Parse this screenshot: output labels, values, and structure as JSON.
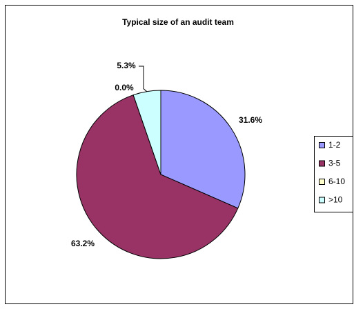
{
  "chart_data": {
    "type": "pie",
    "title": "Typical size of an audit team",
    "categories": [
      "1-2",
      "3-5",
      "6-10",
      ">10"
    ],
    "values": [
      31.6,
      63.2,
      0.0,
      5.3
    ],
    "value_labels": [
      "31.6%",
      "63.2%",
      "0.0%",
      "5.3%"
    ],
    "colors": [
      "#9999ff",
      "#993366",
      "#ffffcc",
      "#ccffff"
    ],
    "legend": "right"
  }
}
